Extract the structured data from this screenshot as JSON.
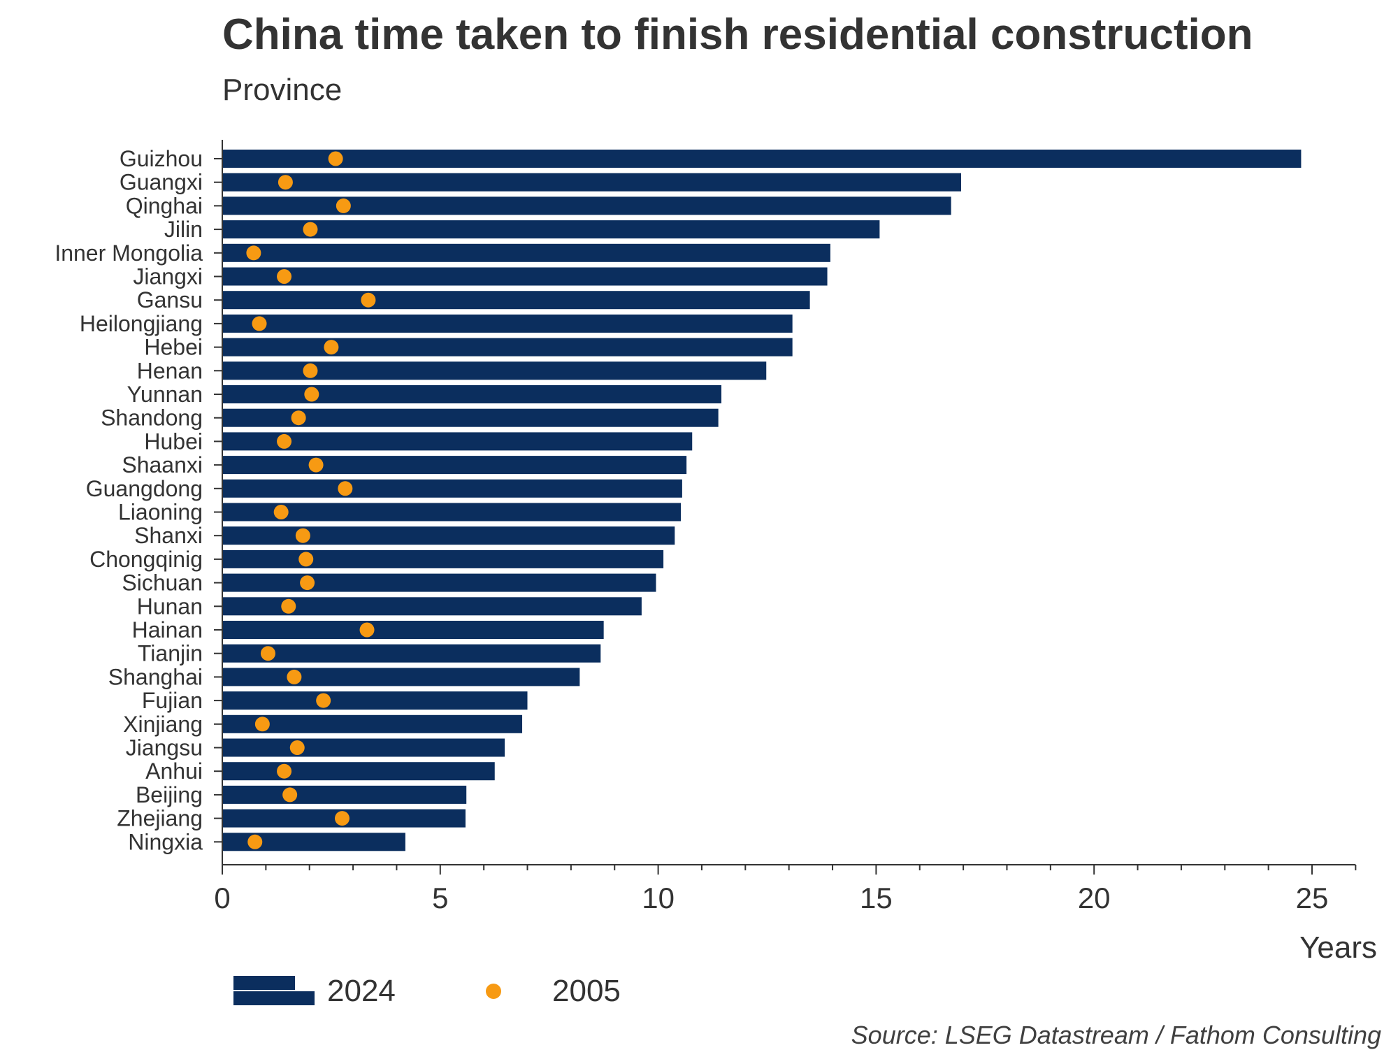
{
  "title": "China time taken to finish residential construction",
  "subtitle": "Province",
  "source": "Source: LSEG Datastream / Fathom Consulting",
  "colors": {
    "bar_2024": "#0B2E5E",
    "dot_2005": "#F79A13",
    "axis": "#333333"
  },
  "chart_data": {
    "type": "bar",
    "orientation": "horizontal",
    "title": "China time taken to finish residential construction",
    "subtitle": "Province",
    "xlabel": "Years",
    "xlim": [
      0,
      26
    ],
    "xticks": [
      0,
      5,
      10,
      15,
      20,
      25
    ],
    "categories": [
      "Guizhou",
      "Guangxi",
      "Qinghai",
      "Jilin",
      "Inner Mongolia",
      "Jiangxi",
      "Gansu",
      "Heilongjiang",
      "Hebei",
      "Henan",
      "Yunnan",
      "Shandong",
      "Hubei",
      "Shaanxi",
      "Guangdong",
      "Liaoning",
      "Shanxi",
      "Chongqinig",
      "Sichuan",
      "Hunan",
      "Hainan",
      "Tianjin",
      "Shanghai",
      "Fujian",
      "Xinjiang",
      "Jiangsu",
      "Anhui",
      "Beijing",
      "Zhejiang",
      "Ningxia"
    ],
    "series": [
      {
        "name": "2024",
        "type": "bar",
        "values": [
          24.75,
          16.95,
          16.72,
          15.08,
          13.95,
          13.88,
          13.48,
          13.08,
          13.08,
          12.48,
          11.45,
          11.38,
          10.78,
          10.65,
          10.55,
          10.52,
          10.38,
          10.12,
          9.95,
          9.62,
          8.75,
          8.68,
          8.2,
          7.0,
          6.88,
          6.48,
          6.25,
          5.6,
          5.58,
          4.2
        ]
      },
      {
        "name": "2005",
        "type": "scatter",
        "values": [
          2.6,
          1.45,
          2.78,
          2.02,
          0.72,
          1.42,
          3.35,
          0.85,
          2.5,
          2.02,
          2.05,
          1.75,
          1.42,
          2.15,
          2.82,
          1.35,
          1.85,
          1.92,
          1.95,
          1.52,
          3.32,
          1.05,
          1.65,
          2.32,
          0.92,
          1.72,
          1.42,
          1.55,
          2.75,
          0.75
        ]
      }
    ],
    "legend": {
      "placement": "bottom-left",
      "entries": [
        "2024",
        "2005"
      ]
    },
    "grid": false
  }
}
